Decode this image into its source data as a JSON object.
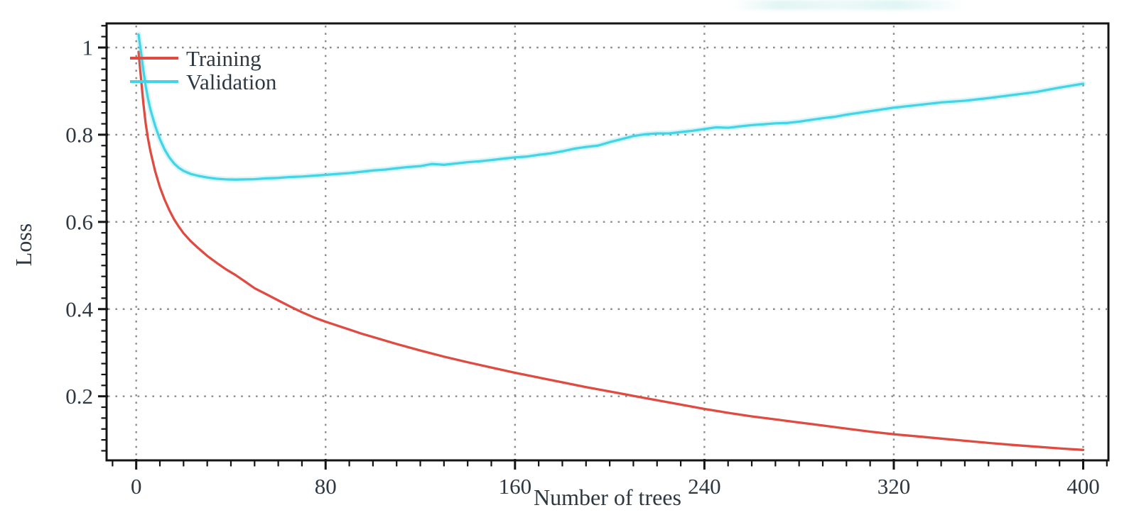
{
  "chart_data": {
    "type": "line",
    "title": "",
    "xlabel": "Number of trees",
    "ylabel": "Loss",
    "xlim": [
      -12.5,
      410.6
    ],
    "ylim": [
      0.053,
      1.055
    ],
    "x_ticks": [
      0,
      80,
      160,
      240,
      320,
      400
    ],
    "x_tick_labels": [
      "0",
      "80",
      "160",
      "240",
      "320",
      "400"
    ],
    "x_minor_step": 10,
    "y_ticks": [
      0.2,
      0.4,
      0.6,
      0.8,
      1
    ],
    "y_tick_labels": [
      "0.2",
      "0.4",
      "0.6",
      "0.8",
      "1"
    ],
    "y_minor_step": 0.025,
    "grid": "dotted-at-major-ticks",
    "legend_position": "top-left-inside",
    "series": [
      {
        "name": "Training",
        "color": "#df4b41",
        "points": [
          [
            1,
            0.99
          ],
          [
            2,
            0.93
          ],
          [
            3,
            0.873
          ],
          [
            4,
            0.826
          ],
          [
            5,
            0.79
          ],
          [
            6,
            0.762
          ],
          [
            8,
            0.716
          ],
          [
            10,
            0.68
          ],
          [
            12,
            0.651
          ],
          [
            14,
            0.627
          ],
          [
            16,
            0.606
          ],
          [
            18,
            0.589
          ],
          [
            20,
            0.574
          ],
          [
            23,
            0.556
          ],
          [
            26,
            0.541
          ],
          [
            30,
            0.522
          ],
          [
            34,
            0.506
          ],
          [
            38,
            0.491
          ],
          [
            42,
            0.478
          ],
          [
            46,
            0.463
          ],
          [
            50,
            0.448
          ],
          [
            55,
            0.434
          ],
          [
            60,
            0.42
          ],
          [
            65,
            0.406
          ],
          [
            70,
            0.393
          ],
          [
            75,
            0.381
          ],
          [
            80,
            0.371
          ],
          [
            85,
            0.362
          ],
          [
            90,
            0.353
          ],
          [
            95,
            0.344
          ],
          [
            100,
            0.336
          ],
          [
            110,
            0.32
          ],
          [
            120,
            0.305
          ],
          [
            130,
            0.291
          ],
          [
            140,
            0.278
          ],
          [
            150,
            0.266
          ],
          [
            160,
            0.254
          ],
          [
            170,
            0.243
          ],
          [
            180,
            0.232
          ],
          [
            190,
            0.221
          ],
          [
            200,
            0.211
          ],
          [
            210,
            0.201
          ],
          [
            220,
            0.191
          ],
          [
            230,
            0.181
          ],
          [
            240,
            0.171
          ],
          [
            250,
            0.162
          ],
          [
            260,
            0.154
          ],
          [
            270,
            0.147
          ],
          [
            280,
            0.14
          ],
          [
            290,
            0.133
          ],
          [
            300,
            0.126
          ],
          [
            310,
            0.119
          ],
          [
            320,
            0.113
          ],
          [
            330,
            0.108
          ],
          [
            340,
            0.103
          ],
          [
            350,
            0.098
          ],
          [
            360,
            0.093
          ],
          [
            370,
            0.0885
          ],
          [
            380,
            0.0845
          ],
          [
            390,
            0.0805
          ],
          [
            400,
            0.077
          ]
        ]
      },
      {
        "name": "Validation",
        "color": "#45d4e5",
        "points": [
          [
            1,
            1.03
          ],
          [
            2,
            0.99
          ],
          [
            3,
            0.948
          ],
          [
            4,
            0.912
          ],
          [
            5,
            0.882
          ],
          [
            6,
            0.858
          ],
          [
            8,
            0.82
          ],
          [
            10,
            0.79
          ],
          [
            12,
            0.766
          ],
          [
            14,
            0.748
          ],
          [
            16,
            0.734
          ],
          [
            18,
            0.724
          ],
          [
            20,
            0.717
          ],
          [
            23,
            0.71
          ],
          [
            26,
            0.706
          ],
          [
            30,
            0.702
          ],
          [
            34,
            0.699
          ],
          [
            38,
            0.6975
          ],
          [
            42,
            0.697
          ],
          [
            46,
            0.6975
          ],
          [
            50,
            0.698
          ],
          [
            55,
            0.7
          ],
          [
            60,
            0.701
          ],
          [
            65,
            0.703
          ],
          [
            70,
            0.704
          ],
          [
            75,
            0.706
          ],
          [
            80,
            0.708
          ],
          [
            85,
            0.71
          ],
          [
            90,
            0.712
          ],
          [
            95,
            0.715
          ],
          [
            100,
            0.718
          ],
          [
            105,
            0.72
          ],
          [
            110,
            0.723
          ],
          [
            115,
            0.726
          ],
          [
            120,
            0.728
          ],
          [
            125,
            0.733
          ],
          [
            130,
            0.731
          ],
          [
            135,
            0.734
          ],
          [
            140,
            0.737
          ],
          [
            145,
            0.739
          ],
          [
            150,
            0.742
          ],
          [
            155,
            0.745
          ],
          [
            160,
            0.748
          ],
          [
            165,
            0.75
          ],
          [
            170,
            0.754
          ],
          [
            175,
            0.757
          ],
          [
            180,
            0.762
          ],
          [
            185,
            0.768
          ],
          [
            190,
            0.772
          ],
          [
            195,
            0.775
          ],
          [
            200,
            0.783
          ],
          [
            205,
            0.79
          ],
          [
            210,
            0.797
          ],
          [
            215,
            0.801
          ],
          [
            220,
            0.803
          ],
          [
            225,
            0.803
          ],
          [
            230,
            0.806
          ],
          [
            235,
            0.809
          ],
          [
            240,
            0.813
          ],
          [
            245,
            0.817
          ],
          [
            250,
            0.816
          ],
          [
            255,
            0.819
          ],
          [
            260,
            0.822
          ],
          [
            265,
            0.824
          ],
          [
            270,
            0.826
          ],
          [
            275,
            0.827
          ],
          [
            280,
            0.83
          ],
          [
            285,
            0.834
          ],
          [
            290,
            0.838
          ],
          [
            295,
            0.841
          ],
          [
            300,
            0.846
          ],
          [
            310,
            0.854
          ],
          [
            320,
            0.862
          ],
          [
            330,
            0.868
          ],
          [
            340,
            0.874
          ],
          [
            350,
            0.878
          ],
          [
            360,
            0.884
          ],
          [
            370,
            0.891
          ],
          [
            380,
            0.898
          ],
          [
            390,
            0.908
          ],
          [
            400,
            0.917
          ]
        ]
      }
    ],
    "legend": [
      {
        "label": "Training",
        "color": "#df4b41"
      },
      {
        "label": "Validation",
        "color": "#45d4e5"
      }
    ]
  },
  "colors": {
    "axis_frame": "#141414",
    "grid": "#8c8c8c",
    "tick_text": "#2d3842",
    "label_text": "#27323c",
    "background": "#ffffff"
  }
}
